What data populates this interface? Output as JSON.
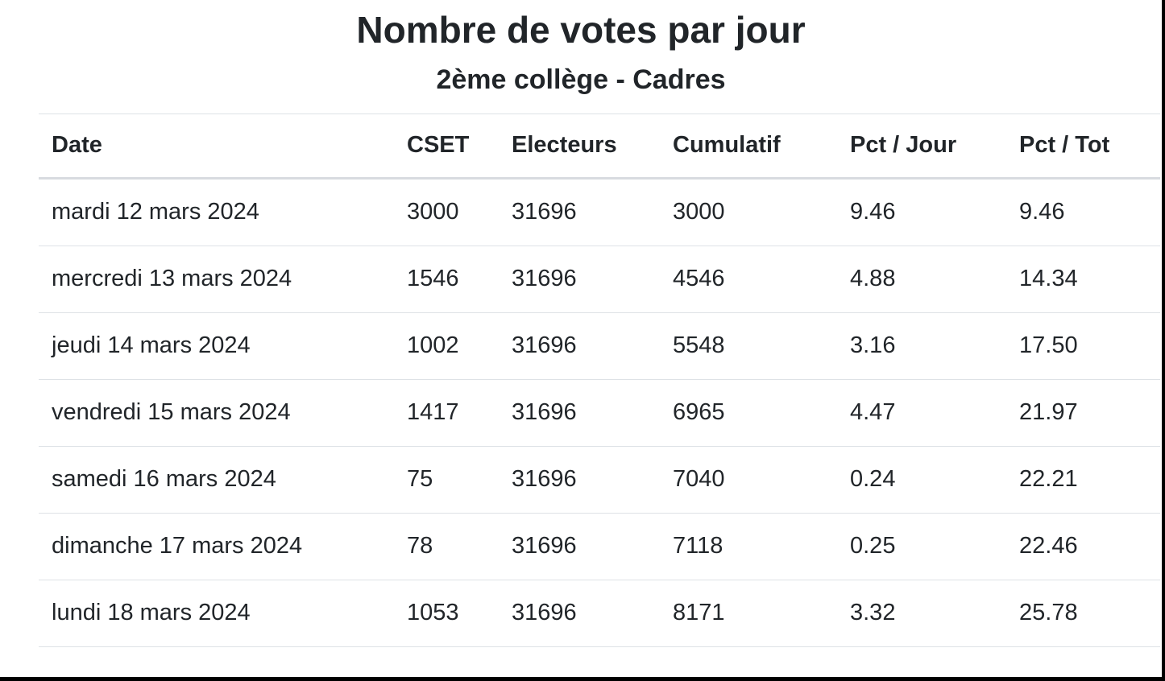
{
  "page": {
    "title": "Nombre de votes par jour",
    "subtitle": "2ème collège - Cadres"
  },
  "table": {
    "columns": [
      "Date",
      "CSET",
      "Electeurs",
      "Cumulatif",
      "Pct / Jour",
      "Pct / Tot"
    ],
    "rows": [
      [
        "mardi 12 mars 2024",
        "3000",
        "31696",
        "3000",
        "9.46",
        "9.46"
      ],
      [
        "mercredi 13 mars 2024",
        "1546",
        "31696",
        "4546",
        "4.88",
        "14.34"
      ],
      [
        "jeudi 14 mars 2024",
        "1002",
        "31696",
        "5548",
        "3.16",
        "17.50"
      ],
      [
        "vendredi 15 mars 2024",
        "1417",
        "31696",
        "6965",
        "4.47",
        "21.97"
      ],
      [
        "samedi 16 mars 2024",
        "75",
        "31696",
        "7040",
        "0.24",
        "22.21"
      ],
      [
        "dimanche 17 mars 2024",
        "78",
        "31696",
        "7118",
        "0.25",
        "22.46"
      ],
      [
        "lundi 18 mars 2024",
        "1053",
        "31696",
        "8171",
        "3.32",
        "25.78"
      ]
    ]
  },
  "colors": {
    "text": "#212529",
    "row_border": "#dee2e6",
    "header_border": "#d8dbe0",
    "frame_border": "#000000",
    "background": "#ffffff"
  }
}
